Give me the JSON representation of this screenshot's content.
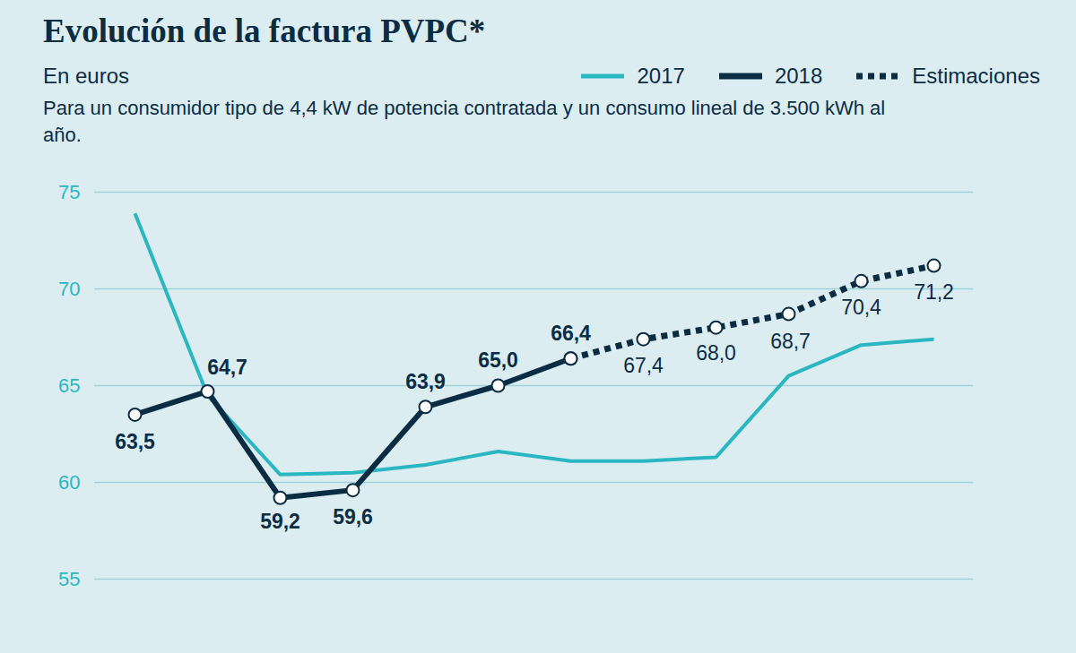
{
  "chart_data": {
    "type": "line",
    "title": "Evolución de la factura PVPC*",
    "subtitle": "En euros",
    "caption": "Para un consumidor tipo de 4,4 kW de potencia contratada y un consumo lineal de 3.500 kWh al año.",
    "categories": [
      null,
      null,
      null,
      null,
      null,
      null,
      null,
      null,
      null,
      null,
      null,
      null
    ],
    "series": [
      {
        "name": "2017",
        "color": "#2bb7c2",
        "line_style": "solid",
        "values": [
          73.9,
          64.5,
          60.4,
          60.5,
          60.9,
          61.6,
          61.1,
          61.1,
          61.3,
          65.5,
          67.1,
          67.4
        ]
      },
      {
        "name": "2018",
        "color": "#0b2d44",
        "line_style": "solid",
        "marker": "circle",
        "values": [
          63.5,
          64.7,
          59.2,
          59.6,
          63.9,
          65.0,
          66.4,
          null,
          null,
          null,
          null,
          null
        ],
        "value_labels": [
          "63,5",
          "64,7",
          "59,2",
          "59,6",
          "63,9",
          "65,0",
          "66,4",
          null,
          null,
          null,
          null,
          null
        ]
      },
      {
        "name": "Estimaciones",
        "color": "#0b2d44",
        "line_style": "dotted",
        "marker": "circle",
        "values": [
          null,
          null,
          null,
          null,
          null,
          null,
          66.4,
          67.4,
          68.0,
          68.7,
          70.4,
          71.2
        ],
        "value_labels": [
          null,
          null,
          null,
          null,
          null,
          null,
          null,
          "67,4",
          "68,0",
          "68,7",
          "70,4",
          "71,2"
        ]
      }
    ],
    "ylim": [
      55,
      75
    ],
    "yticks": [
      55,
      60,
      65,
      70,
      75
    ],
    "grid": true,
    "legend": "top-right",
    "data_labels": true,
    "tick_labels": "y"
  }
}
